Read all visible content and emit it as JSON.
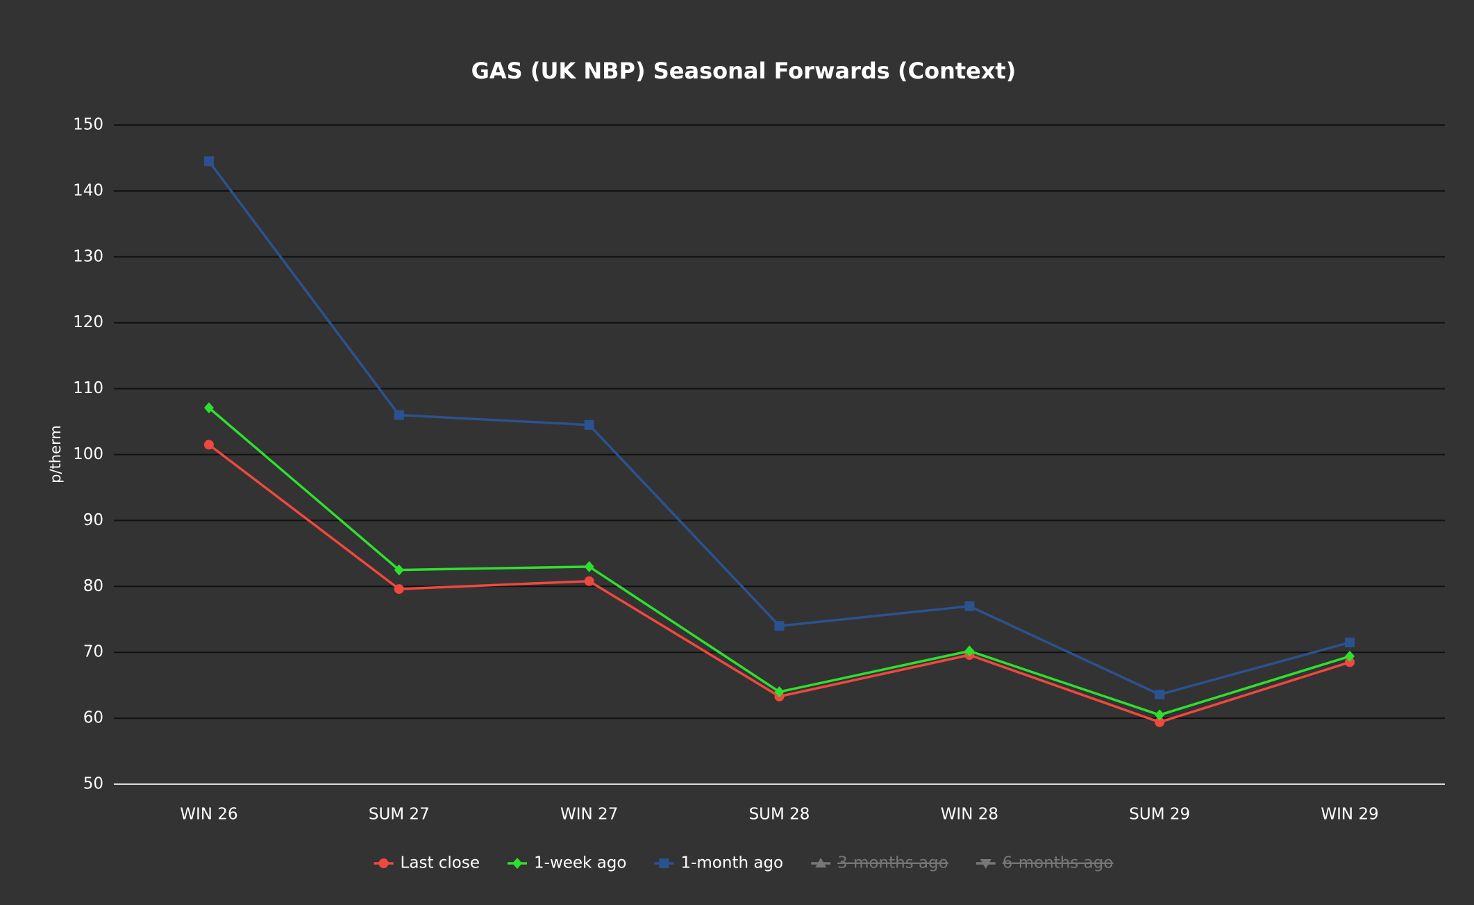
{
  "chart_data": {
    "type": "line",
    "title": "GAS (UK NBP) Seasonal Forwards (Context)",
    "y_label": "p/therm",
    "categories": [
      "WIN 26",
      "SUM 27",
      "WIN 27",
      "SUM 28",
      "WIN 28",
      "SUM 29",
      "WIN 29"
    ],
    "series": [
      {
        "name": "Last close",
        "color": "#f0483e",
        "marker": "circle",
        "values": [
          101.5,
          79.6,
          80.8,
          63.3,
          69.6,
          59.4,
          68.5
        ]
      },
      {
        "name": "1-week ago",
        "color": "#2ee02e",
        "marker": "diamond",
        "values": [
          107.1,
          82.5,
          83.0,
          64.0,
          70.2,
          60.5,
          69.4
        ]
      },
      {
        "name": "1-month ago",
        "color": "#2b5290",
        "marker": "square",
        "values": [
          144.5,
          106.0,
          104.5,
          74.0,
          77.0,
          63.6,
          71.5
        ]
      },
      {
        "name": "3-months ago",
        "color": "#666666",
        "marker": "triangle",
        "hidden": true,
        "values": [
          null,
          null,
          null,
          null,
          null,
          null,
          null
        ]
      },
      {
        "name": "6-months ago",
        "color": "#666666",
        "marker": "triangle-down",
        "hidden": true,
        "values": [
          null,
          null,
          null,
          null,
          null,
          null,
          null
        ]
      }
    ],
    "ylim": [
      50,
      150
    ],
    "yticks": [
      50,
      60,
      70,
      80,
      90,
      100,
      110,
      120,
      130,
      140,
      150
    ],
    "grid": true,
    "legend": "bottom"
  }
}
